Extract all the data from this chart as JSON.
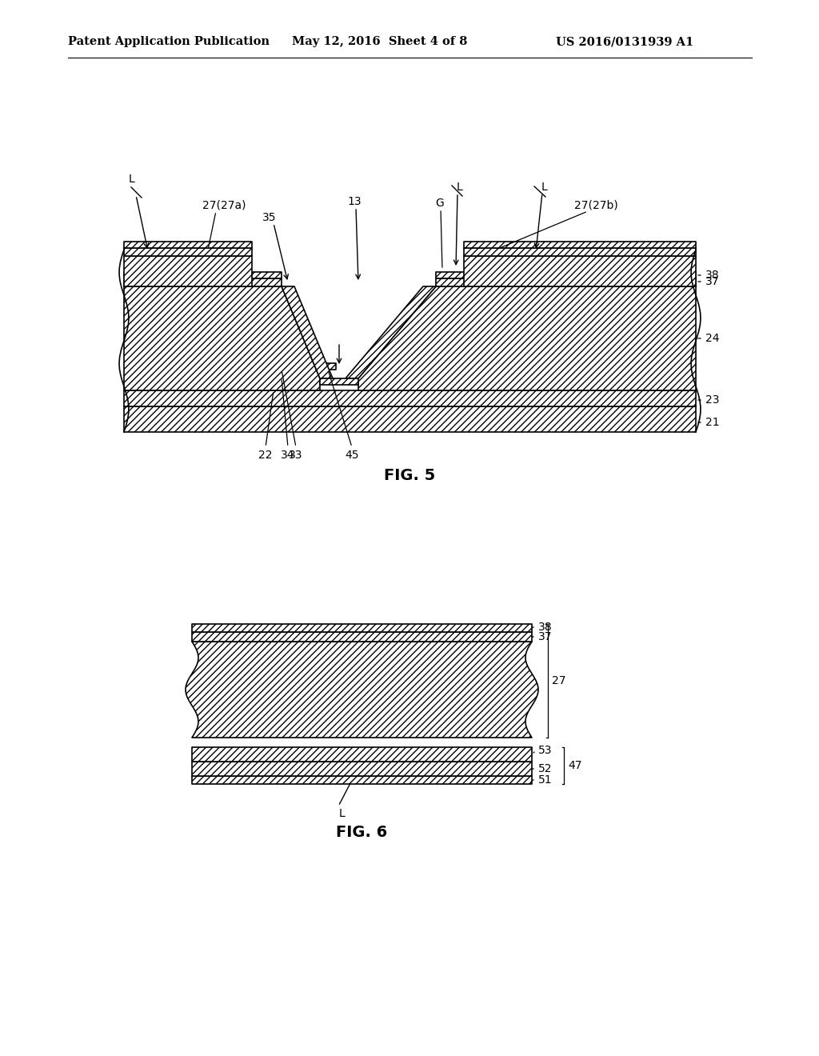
{
  "header_left": "Patent Application Publication",
  "header_mid": "May 12, 2016  Sheet 4 of 8",
  "header_right": "US 2016/0131939 A1",
  "fig5_caption": "FIG. 5",
  "fig6_caption": "FIG. 6",
  "background_color": "#ffffff",
  "line_color": "#000000"
}
